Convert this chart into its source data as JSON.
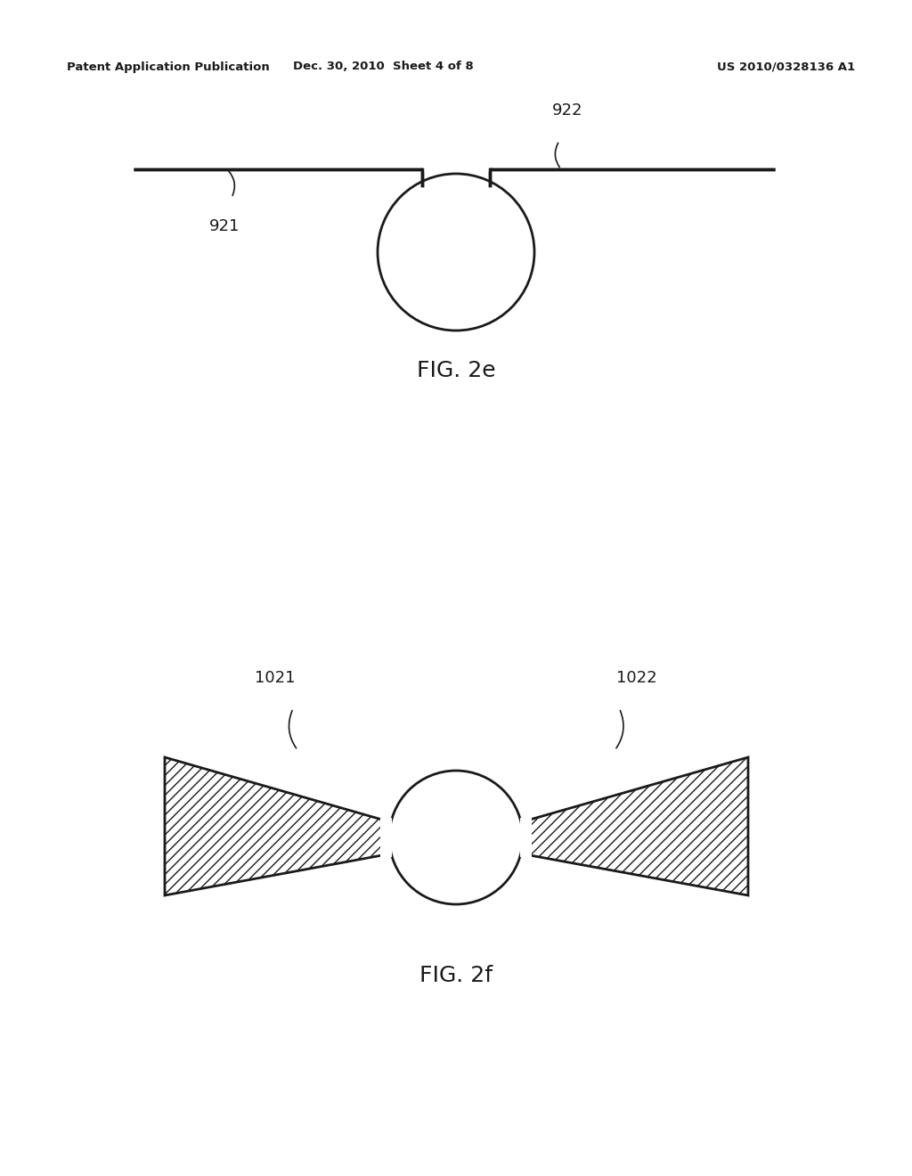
{
  "bg_color": "#ffffff",
  "line_color": "#1a1a1a",
  "header_left": "Patent Application Publication",
  "header_mid": "Dec. 30, 2010  Sheet 4 of 8",
  "header_right": "US 2010/0328136 A1",
  "fig2e_label": "FIG. 2e",
  "fig2f_label": "FIG. 2f",
  "label_921": "921",
  "label_922": "922",
  "label_1021": "1021",
  "label_1022": "1022"
}
